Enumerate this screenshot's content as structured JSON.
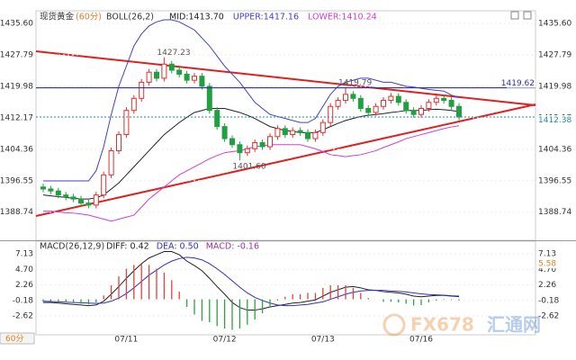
{
  "chart_data": [
    {
      "type": "candlestick",
      "title": "现货黄金",
      "period_label": "(60分)",
      "indicator": "BOLL(26,2)",
      "categories": [
        null,
        null,
        null,
        null,
        null,
        null,
        null,
        null,
        null,
        null,
        null,
        "07/11",
        null,
        null,
        null,
        null,
        null,
        null,
        null,
        null,
        null,
        null,
        null,
        null,
        "07/12",
        null,
        null,
        null,
        null,
        null,
        null,
        null,
        null,
        null,
        null,
        null,
        null,
        "07/13",
        null,
        null,
        null,
        null,
        null,
        null,
        null,
        null,
        null,
        null,
        null,
        null,
        "07/16",
        null,
        null,
        null,
        null,
        null
      ],
      "open": [
        1395.0,
        1394.5,
        1394.0,
        1393.0,
        1392.5,
        1392.0,
        1391.0,
        1390.5,
        1393.0,
        1398.0,
        1404.0,
        1408.0,
        1414.0,
        1417.0,
        1421.0,
        1423.5,
        1422.0,
        1425.5,
        1424.0,
        1423.0,
        1421.5,
        1422.5,
        1420.0,
        1414.0,
        1410.0,
        1407.0,
        1405.5,
        1403.5,
        1404.5,
        1406.0,
        1405.0,
        1407.5,
        1409.5,
        1408.0,
        1409.0,
        1408.5,
        1407.0,
        1408.5,
        1411.0,
        1415.0,
        1416.5,
        1418.0,
        1417.0,
        1414.5,
        1413.5,
        1415.0,
        1416.5,
        1417.5,
        1416.0,
        1414.0,
        1413.0,
        1414.5,
        1416.0,
        1417.0,
        1416.5,
        1415.0
      ],
      "high": [
        1395.8,
        1395.3,
        1394.8,
        1393.8,
        1393.3,
        1392.8,
        1391.8,
        1393.8,
        1398.8,
        1404.8,
        1408.8,
        1414.8,
        1417.8,
        1421.8,
        1424.3,
        1424.3,
        1427.23,
        1426.3,
        1424.8,
        1423.8,
        1423.3,
        1423.3,
        1420.8,
        1414.8,
        1410.8,
        1407.8,
        1406.3,
        1405.3,
        1406.8,
        1406.8,
        1408.3,
        1410.3,
        1410.3,
        1409.8,
        1409.8,
        1409.3,
        1409.3,
        1411.8,
        1415.8,
        1417.3,
        1419.79,
        1418.8,
        1417.8,
        1415.3,
        1415.8,
        1417.3,
        1418.3,
        1418.3,
        1416.8,
        1414.8,
        1415.3,
        1416.8,
        1417.8,
        1417.8,
        1417.3,
        1415.8
      ],
      "low": [
        1393.7,
        1393.2,
        1392.2,
        1391.7,
        1391.2,
        1390.2,
        1389.7,
        1389.7,
        1392.2,
        1397.2,
        1403.2,
        1407.2,
        1413.2,
        1416.2,
        1420.2,
        1421.2,
        1421.2,
        1423.2,
        1422.2,
        1420.7,
        1420.7,
        1419.2,
        1413.2,
        1409.2,
        1406.2,
        1404.7,
        1401.6,
        1402.7,
        1403.7,
        1404.2,
        1404.2,
        1406.7,
        1407.2,
        1407.2,
        1407.7,
        1406.2,
        1406.2,
        1407.7,
        1410.2,
        1414.2,
        1415.7,
        1416.2,
        1413.7,
        1412.7,
        1412.7,
        1414.2,
        1415.7,
        1415.2,
        1413.2,
        1412.2,
        1412.2,
        1413.7,
        1415.2,
        1415.7,
        1414.2,
        1411.6
      ],
      "close": [
        1394.5,
        1394.0,
        1393.0,
        1392.5,
        1392.0,
        1391.0,
        1390.5,
        1393.0,
        1398.0,
        1404.0,
        1408.0,
        1414.0,
        1417.0,
        1421.0,
        1423.5,
        1422.0,
        1425.5,
        1424.0,
        1423.0,
        1421.5,
        1422.5,
        1420.0,
        1414.0,
        1410.0,
        1407.0,
        1405.5,
        1403.5,
        1404.5,
        1406.0,
        1405.0,
        1407.5,
        1409.5,
        1408.0,
        1409.0,
        1408.5,
        1407.0,
        1408.5,
        1411.0,
        1415.0,
        1416.5,
        1418.0,
        1417.0,
        1414.5,
        1413.5,
        1415.0,
        1416.5,
        1417.5,
        1416.0,
        1414.0,
        1413.0,
        1414.5,
        1416.0,
        1417.0,
        1416.5,
        1415.0,
        1412.38
      ],
      "up_color": "#e03030",
      "down_color": "#20a040",
      "bands": [
        {
          "readout": "MID:1413.70",
          "color": "#222222",
          "values": [
            1393,
            1392.8,
            1392.6,
            1392.4,
            1392.2,
            1392,
            1392,
            1392.3,
            1393,
            1394.5,
            1396,
            1398,
            1400,
            1402,
            1404,
            1406,
            1408,
            1409.5,
            1411,
            1412.3,
            1413.5,
            1414,
            1414.5,
            1414.5,
            1414.5,
            1414,
            1413.5,
            1412.8,
            1412,
            1411,
            1410,
            1409.5,
            1409,
            1408.8,
            1408.5,
            1408.5,
            1408.5,
            1409.2,
            1410,
            1410.8,
            1411.5,
            1412,
            1412.5,
            1412.8,
            1413,
            1413.2,
            1413.5,
            1413.7,
            1414,
            1414,
            1414,
            1414.2,
            1414.3,
            1414.2,
            1414,
            1413.7
          ]
        },
        {
          "readout": "UPPER:1417.16",
          "color": "#4040c8",
          "values": [
            1396.5,
            1396.5,
            1396.5,
            1396.5,
            1396.5,
            1396.5,
            1396.5,
            1399,
            1405,
            1413,
            1420,
            1425,
            1430,
            1433,
            1435,
            1436,
            1436.5,
            1436.5,
            1436,
            1435,
            1434,
            1432,
            1430,
            1427.5,
            1425,
            1423,
            1421,
            1418.5,
            1416,
            1414.5,
            1413,
            1412.5,
            1412,
            1411.5,
            1411,
            1411,
            1412,
            1415,
            1418,
            1420,
            1421,
            1421.5,
            1422,
            1422,
            1421.5,
            1421,
            1421,
            1420.5,
            1420,
            1419.8,
            1419.5,
            1419.2,
            1419,
            1418.8,
            1417.8,
            1417.2
          ]
        },
        {
          "readout": "LOWER:1410.24",
          "color": "#d040d0",
          "values": [
            1389,
            1389,
            1388.8,
            1388.6,
            1388.5,
            1388.3,
            1388,
            1387.5,
            1387,
            1386.5,
            1387,
            1387.5,
            1388,
            1390,
            1392,
            1393.5,
            1395,
            1396.5,
            1398,
            1399,
            1400,
            1401,
            1402,
            1402.8,
            1403.5,
            1403.8,
            1404,
            1404.5,
            1405,
            1405.2,
            1405.5,
            1405.5,
            1405.5,
            1405.5,
            1405.5,
            1405,
            1404.5,
            1403.8,
            1403,
            1402.8,
            1402.5,
            1402.8,
            1403,
            1403.5,
            1404,
            1404.8,
            1405.5,
            1406.2,
            1407,
            1407.5,
            1408,
            1408.5,
            1409,
            1409.5,
            1409.9,
            1410.2
          ]
        }
      ],
      "annotations": [
        {
          "value": 1427.23,
          "label": "1427.23"
        },
        {
          "value": 1419.79,
          "label": "1419.79"
        },
        {
          "value": 1401.6,
          "label": "1401.60"
        }
      ],
      "level_line": {
        "value": 1419.62,
        "color": "#3030b0"
      },
      "last_price": {
        "value": 1412.38,
        "color": "#2090a0"
      },
      "ylim": [
        1382.2,
        1438.3
      ],
      "yticks": [
        {
          "value": 1435.6,
          "label": "1435.60"
        },
        {
          "value": 1427.79,
          "label": "1427.79"
        },
        {
          "value": 1419.98,
          "label": "1419.98"
        },
        {
          "value": 1412.17,
          "label": "1412.17"
        },
        {
          "value": 1404.36,
          "label": "1404.36"
        },
        {
          "value": 1396.55,
          "label": "1396.55"
        },
        {
          "value": 1388.74,
          "label": "1388.74"
        }
      ]
    },
    {
      "type": "macd",
      "indicator": "MACD(26,12,9)",
      "series": [
        {
          "readout": "DIFF: 0.42",
          "color": "#222222",
          "style": "line",
          "values": [
            -0.5,
            -0.5,
            -0.6,
            -0.7,
            -0.8,
            -0.9,
            -1.0,
            -0.9,
            -0.3,
            0.8,
            2.0,
            3.3,
            4.5,
            5.6,
            6.5,
            7.0,
            7.5,
            7.5,
            7.0,
            6.0,
            5.3,
            4.5,
            3.3,
            2.0,
            0.8,
            -0.5,
            -1.3,
            -1.7,
            -1.7,
            -1.5,
            -1.2,
            -1.0,
            -0.8,
            -0.6,
            -0.5,
            -0.3,
            -0.1,
            0.5,
            1.1,
            1.5,
            1.9,
            2.0,
            1.8,
            1.5,
            1.4,
            1.2,
            1.1,
            1.0,
            0.8,
            0.5,
            0.4,
            0.5,
            0.6,
            0.6,
            0.5,
            0.42
          ]
        },
        {
          "readout": "DEA: 0.50",
          "color": "#3030c0",
          "style": "line",
          "values": [
            -0.3,
            -0.35,
            -0.4,
            -0.45,
            -0.5,
            -0.55,
            -0.6,
            -0.65,
            -0.6,
            -0.3,
            0.2,
            0.9,
            1.8,
            2.8,
            3.8,
            4.6,
            5.4,
            6.0,
            6.4,
            6.6,
            6.5,
            6.2,
            5.6,
            4.8,
            3.9,
            2.9,
            1.9,
            1.0,
            0.3,
            -0.2,
            -0.6,
            -0.9,
            -1.0,
            -1.0,
            -0.9,
            -0.8,
            -0.6,
            -0.4,
            0.0,
            0.4,
            0.8,
            1.1,
            1.3,
            1.4,
            1.4,
            1.4,
            1.3,
            1.25,
            1.15,
            1.0,
            0.85,
            0.75,
            0.7,
            0.65,
            0.55,
            0.5
          ]
        },
        {
          "readout": "MACD: -0.16",
          "color": "#a030a0",
          "style": "bar",
          "up_color": "#e04040",
          "down_color": "#30a040",
          "values": [
            -0.4,
            -0.3,
            -0.4,
            -0.5,
            -0.6,
            -0.7,
            -0.8,
            -0.5,
            0.6,
            2.2,
            3.6,
            4.8,
            5.4,
            5.6,
            5.4,
            4.8,
            4.2,
            3.0,
            1.2,
            -1.2,
            -2.4,
            -3.4,
            -3.6,
            -4.2,
            -4.6,
            -4.8,
            -4.6,
            -4.0,
            -3.2,
            -2.2,
            -1.2,
            -0.2,
            0.4,
            0.8,
            0.8,
            1.0,
            1.0,
            1.8,
            2.2,
            2.2,
            2.2,
            1.8,
            1.0,
            0.2,
            0.0,
            -0.4,
            -0.4,
            -0.5,
            -0.7,
            -1.0,
            -0.9,
            -0.5,
            -0.2,
            -0.1,
            -0.1,
            -0.16
          ]
        }
      ],
      "marker": {
        "value": 5.58,
        "color": "#e08020"
      },
      "ylim": [
        -5.3,
        8.85
      ],
      "yticks": [
        7.13,
        {
          "value": 4.7,
          "label": "4.70"
        },
        2.26,
        -0.18,
        -2.62
      ]
    }
  ],
  "period": "60分",
  "watermark": {
    "brand": "FX678",
    "name": "汇通网"
  }
}
